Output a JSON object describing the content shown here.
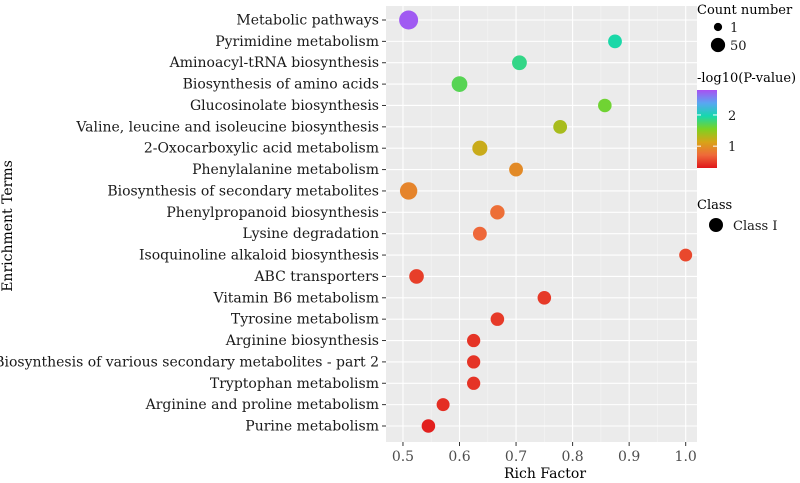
{
  "chart_data": {
    "type": "scatter",
    "title": "",
    "xlabel": "Rich Factor",
    "ylabel": "Enrichment Terms",
    "xlim": [
      0.47,
      1.02
    ],
    "x_ticks": [
      {
        "value": 0.5,
        "label": "0.5"
      },
      {
        "value": 0.6,
        "label": "0.6"
      },
      {
        "value": 0.7,
        "label": "0.7"
      },
      {
        "value": 0.8,
        "label": "0.8"
      },
      {
        "value": 0.9,
        "label": "0.9"
      },
      {
        "value": 1.0,
        "label": "1.0"
      }
    ],
    "grid": true,
    "points": [
      {
        "term": "Metabolic pathways",
        "rich_factor": 0.51,
        "count": 50,
        "neg_log10_p": 2.75
      },
      {
        "term": "Pyrimidine metabolism",
        "rich_factor": 0.875,
        "count": 7,
        "neg_log10_p": 1.95
      },
      {
        "term": "Aminoacyl-tRNA biosynthesis",
        "rich_factor": 0.706,
        "count": 12,
        "neg_log10_p": 1.85
      },
      {
        "term": "Biosynthesis of amino acids",
        "rich_factor": 0.6,
        "count": 18,
        "neg_log10_p": 1.7
      },
      {
        "term": "Glucosinolate biosynthesis",
        "rich_factor": 0.857,
        "count": 6,
        "neg_log10_p": 1.6
      },
      {
        "term": "Valine, leucine and isoleucine biosynthesis",
        "rich_factor": 0.778,
        "count": 7,
        "neg_log10_p": 1.35
      },
      {
        "term": "2-Oxocarboxylic acid metabolism",
        "rich_factor": 0.636,
        "count": 14,
        "neg_log10_p": 1.2
      },
      {
        "term": "Phenylalanine metabolism",
        "rich_factor": 0.7,
        "count": 7,
        "neg_log10_p": 0.95
      },
      {
        "term": "Biosynthesis of secondary metabolites",
        "rich_factor": 0.51,
        "count": 32,
        "neg_log10_p": 0.9
      },
      {
        "term": "Phenylpropanoid biosynthesis",
        "rich_factor": 0.667,
        "count": 10,
        "neg_log10_p": 0.75
      },
      {
        "term": "Lysine degradation",
        "rich_factor": 0.636,
        "count": 7,
        "neg_log10_p": 0.7
      },
      {
        "term": "Isoquinoline alkaloid biosynthesis",
        "rich_factor": 1.0,
        "count": 4,
        "neg_log10_p": 0.55
      },
      {
        "term": "ABC transporters",
        "rich_factor": 0.524,
        "count": 11,
        "neg_log10_p": 0.5
      },
      {
        "term": "Vitamin B6 metabolism",
        "rich_factor": 0.75,
        "count": 6,
        "neg_log10_p": 0.48
      },
      {
        "term": "Tyrosine metabolism",
        "rich_factor": 0.667,
        "count": 6,
        "neg_log10_p": 0.48
      },
      {
        "term": "Arginine biosynthesis",
        "rich_factor": 0.625,
        "count": 5,
        "neg_log10_p": 0.45
      },
      {
        "term": "Biosynthesis of various secondary metabolites - part 2",
        "rich_factor": 0.625,
        "count": 5,
        "neg_log10_p": 0.45
      },
      {
        "term": "Tryptophan metabolism",
        "rich_factor": 0.625,
        "count": 5,
        "neg_log10_p": 0.45
      },
      {
        "term": "Arginine and proline metabolism",
        "rich_factor": 0.571,
        "count": 4,
        "neg_log10_p": 0.42
      },
      {
        "term": "Purine metabolism",
        "rich_factor": 0.545,
        "count": 6,
        "neg_log10_p": 0.35
      }
    ],
    "legend": {
      "size_title": "Count number",
      "size_entries": [
        {
          "label": "1",
          "count": 1
        },
        {
          "label": "50",
          "count": 50
        }
      ],
      "color_title": "-log10(P-value)",
      "color_range": [
        0.3,
        2.8
      ],
      "color_ticks": [
        {
          "value": 1,
          "label": "1"
        },
        {
          "value": 2,
          "label": "2"
        }
      ],
      "color_stops": [
        "#e0161a",
        "#ef6a3a",
        "#d8a418",
        "#7cd222",
        "#16d8ae",
        "#5aa6f2",
        "#a950f2"
      ],
      "class_title": "Class",
      "class_entries": [
        "Class I"
      ]
    },
    "colors": {
      "panel": "#ebebeb",
      "grid_major": "#ffffff",
      "grid_minor": "#f5f5f5",
      "text": "#1a1a1a",
      "axis_text": "#4d4d4d"
    }
  }
}
